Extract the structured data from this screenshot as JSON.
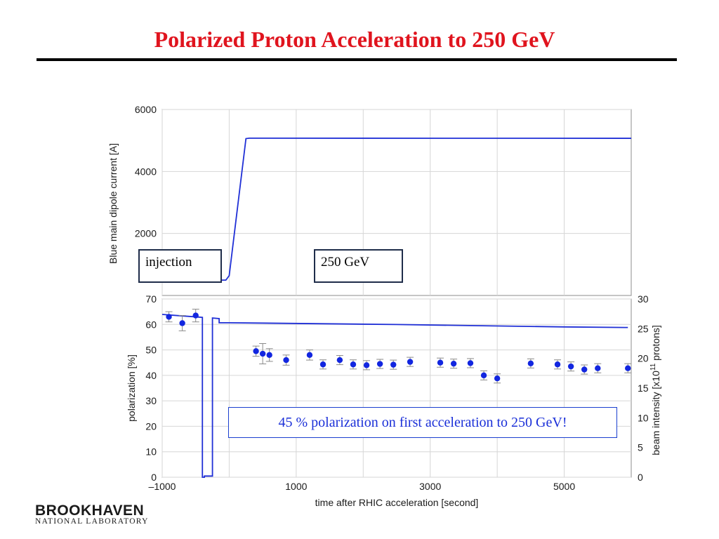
{
  "slide": {
    "title": "Polarized Proton Acceleration to 250 GeV"
  },
  "labels": {
    "injection": "injection",
    "energy": "250 GeV",
    "callout": "45 %  polarization on first acceleration to 250 GeV!"
  },
  "logo": {
    "main": "BROOKHAVEN",
    "sub": "NATIONAL LABORATORY"
  },
  "colors": {
    "title": "#e0141e",
    "series": "#1f2fd6",
    "points": "#1226e0"
  },
  "chart_data": [
    {
      "type": "line",
      "ylabel": "Blue main dipole current [A]",
      "yticks": [
        "2000",
        "4000",
        "6000"
      ],
      "yticks_values": [
        2000,
        4000,
        6000
      ],
      "ylim": [
        0,
        6000
      ],
      "xlim": [
        -1000,
        6000
      ],
      "grid": true,
      "series": [
        {
          "x": [
            -1000,
            -50,
            0,
            250,
            300,
            6000
          ],
          "y": [
            495,
            495,
            640,
            5060,
            5075,
            5070
          ]
        }
      ]
    },
    {
      "type": "scatter",
      "xlabel": "time after RHIC acceleration [second]",
      "ylabel": "polarization [%]",
      "y2label": "beam intensity [x10  protons]",
      "y2label_superscript": "11",
      "xticks": [
        "–1000",
        "1000",
        "3000",
        "5000"
      ],
      "xticks_values": [
        -1000,
        1000,
        3000,
        5000
      ],
      "yticks": [
        "0",
        "10",
        "20",
        "30",
        "40",
        "50",
        "60",
        "70"
      ],
      "yticks_values": [
        0,
        10,
        20,
        30,
        40,
        50,
        60,
        70
      ],
      "y2ticks": [
        "0",
        "5",
        "10",
        "15",
        "20",
        "25",
        "30"
      ],
      "y2ticks_values": [
        0,
        5,
        10,
        15,
        20,
        25,
        30
      ],
      "xlim": [
        -1000,
        6000
      ],
      "ylim": [
        0,
        70
      ],
      "y2lim": [
        0,
        30
      ],
      "grid": true,
      "points": [
        {
          "x": -900,
          "y": 63,
          "err": 2
        },
        {
          "x": -700,
          "y": 60.5,
          "err": 3
        },
        {
          "x": -500,
          "y": 63.5,
          "err": 2.5
        },
        {
          "x": 400,
          "y": 49.5,
          "err": 2
        },
        {
          "x": 500,
          "y": 48.5,
          "err": 4
        },
        {
          "x": 600,
          "y": 48,
          "err": 2.5
        },
        {
          "x": 850,
          "y": 46,
          "err": 2
        },
        {
          "x": 1200,
          "y": 48,
          "err": 2
        },
        {
          "x": 1400,
          "y": 44.3,
          "err": 1.8
        },
        {
          "x": 1650,
          "y": 46,
          "err": 1.8
        },
        {
          "x": 1850,
          "y": 44.3,
          "err": 1.8
        },
        {
          "x": 2050,
          "y": 44,
          "err": 1.8
        },
        {
          "x": 2250,
          "y": 44.5,
          "err": 1.8
        },
        {
          "x": 2450,
          "y": 44.2,
          "err": 1.8
        },
        {
          "x": 2700,
          "y": 45.3,
          "err": 1.8
        },
        {
          "x": 3150,
          "y": 45,
          "err": 1.8
        },
        {
          "x": 3350,
          "y": 44.6,
          "err": 1.8
        },
        {
          "x": 3600,
          "y": 44.8,
          "err": 1.8
        },
        {
          "x": 3800,
          "y": 40,
          "err": 1.8
        },
        {
          "x": 4000,
          "y": 38.8,
          "err": 1.8
        },
        {
          "x": 4500,
          "y": 44.7,
          "err": 1.8
        },
        {
          "x": 4900,
          "y": 44.3,
          "err": 1.8
        },
        {
          "x": 5100,
          "y": 43.5,
          "err": 1.8
        },
        {
          "x": 5300,
          "y": 42.3,
          "err": 1.8
        },
        {
          "x": 5500,
          "y": 42.8,
          "err": 1.8
        },
        {
          "x": 5950,
          "y": 42.8,
          "err": 1.8
        }
      ],
      "intensity": {
        "x": [
          -1000,
          -400,
          -400,
          -370,
          -370,
          -250,
          -250,
          -150,
          -150,
          0,
          0,
          2500,
          5000,
          5950
        ],
        "y": [
          27.4,
          26.9,
          0,
          0,
          0.2,
          0.2,
          26.8,
          26.7,
          26.0,
          26.0,
          26.0,
          25.7,
          25.3,
          25.2
        ]
      }
    }
  ]
}
